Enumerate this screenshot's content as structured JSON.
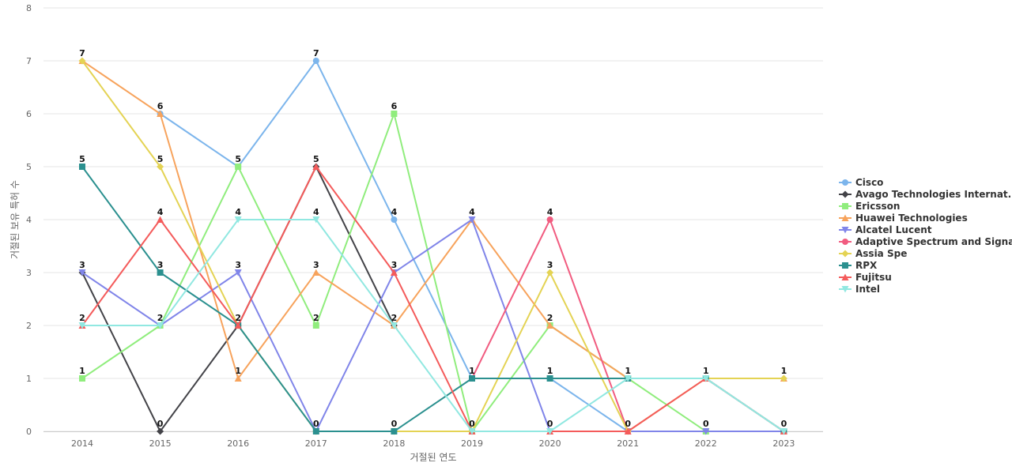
{
  "chart_data": {
    "type": "line",
    "xlabel": "거절된 연도",
    "ylabel": "거절된 보유 특허 수",
    "x": [
      "2014",
      "2015",
      "2016",
      "2017",
      "2018",
      "2019",
      "2020",
      "2021",
      "2022",
      "2023"
    ],
    "ylim": [
      0,
      8
    ],
    "yticks": [
      "0",
      "1",
      "2",
      "3",
      "4",
      "5",
      "6",
      "7",
      "8"
    ],
    "grid": true,
    "legend_position": "right",
    "series": [
      {
        "name": "Cisco",
        "color": "#7cb5ec",
        "marker": "circle",
        "values": [
          null,
          6,
          5,
          7,
          4,
          1,
          1,
          0,
          0,
          0
        ]
      },
      {
        "name": "Avago Technologies Internat...",
        "color": "#434348",
        "marker": "diamond",
        "values": [
          3,
          0,
          2,
          5,
          2,
          null,
          null,
          null,
          null,
          null
        ]
      },
      {
        "name": "Ericsson",
        "color": "#90ed7d",
        "marker": "square",
        "values": [
          1,
          2,
          5,
          2,
          6,
          0,
          2,
          1,
          0,
          0
        ]
      },
      {
        "name": "Huawei Technologies",
        "color": "#f7a35c",
        "marker": "triangle",
        "values": [
          7,
          6,
          1,
          3,
          2,
          4,
          2,
          1,
          1,
          1
        ]
      },
      {
        "name": "Alcatel Lucent",
        "color": "#8085e9",
        "marker": "triangle-down",
        "values": [
          3,
          2,
          3,
          0,
          3,
          4,
          0,
          0,
          0,
          0
        ]
      },
      {
        "name": "Adaptive Spectrum and Signa...",
        "color": "#f15c80",
        "marker": "circle",
        "values": [
          null,
          null,
          null,
          null,
          null,
          1,
          4,
          0,
          null,
          null
        ]
      },
      {
        "name": "Assia Spe",
        "color": "#e4d354",
        "marker": "diamond",
        "values": [
          7,
          5,
          2,
          0,
          0,
          0,
          3,
          0,
          1,
          1
        ]
      },
      {
        "name": "RPX",
        "color": "#2b908f",
        "marker": "square",
        "values": [
          5,
          3,
          2,
          0,
          0,
          1,
          1,
          1,
          1,
          0
        ]
      },
      {
        "name": "Fujitsu",
        "color": "#f45b5b",
        "marker": "triangle",
        "values": [
          2,
          4,
          2,
          5,
          3,
          0,
          0,
          0,
          1,
          0
        ]
      },
      {
        "name": "Intel",
        "color": "#91e8e1",
        "marker": "triangle-down",
        "values": [
          2,
          2,
          4,
          4,
          2,
          0,
          0,
          1,
          1,
          0
        ]
      }
    ],
    "data_labels": [
      {
        "x": "2014",
        "value": 7
      },
      {
        "x": "2014",
        "value": 5
      },
      {
        "x": "2014",
        "value": 3
      },
      {
        "x": "2014",
        "value": 2
      },
      {
        "x": "2014",
        "value": 1
      },
      {
        "x": "2015",
        "value": 6
      },
      {
        "x": "2015",
        "value": 5
      },
      {
        "x": "2015",
        "value": 4
      },
      {
        "x": "2015",
        "value": 3
      },
      {
        "x": "2015",
        "value": 2
      },
      {
        "x": "2015",
        "value": 0
      },
      {
        "x": "2016",
        "value": 5
      },
      {
        "x": "2016",
        "value": 4
      },
      {
        "x": "2016",
        "value": 3
      },
      {
        "x": "2016",
        "value": 2
      },
      {
        "x": "2016",
        "value": 1
      },
      {
        "x": "2017",
        "value": 7
      },
      {
        "x": "2017",
        "value": 5
      },
      {
        "x": "2017",
        "value": 4
      },
      {
        "x": "2017",
        "value": 3
      },
      {
        "x": "2017",
        "value": 2
      },
      {
        "x": "2017",
        "value": 0
      },
      {
        "x": "2018",
        "value": 6
      },
      {
        "x": "2018",
        "value": 4
      },
      {
        "x": "2018",
        "value": 3
      },
      {
        "x": "2018",
        "value": 2
      },
      {
        "x": "2018",
        "value": 0
      },
      {
        "x": "2019",
        "value": 4
      },
      {
        "x": "2019",
        "value": 1
      },
      {
        "x": "2019",
        "value": 0
      },
      {
        "x": "2020",
        "value": 4
      },
      {
        "x": "2020",
        "value": 3
      },
      {
        "x": "2020",
        "value": 2
      },
      {
        "x": "2020",
        "value": 1
      },
      {
        "x": "2020",
        "value": 0
      },
      {
        "x": "2021",
        "value": 1
      },
      {
        "x": "2021",
        "value": 0
      },
      {
        "x": "2022",
        "value": 1
      },
      {
        "x": "2022",
        "value": 0
      },
      {
        "x": "2023",
        "value": 1
      },
      {
        "x": "2023",
        "value": 0
      }
    ]
  }
}
